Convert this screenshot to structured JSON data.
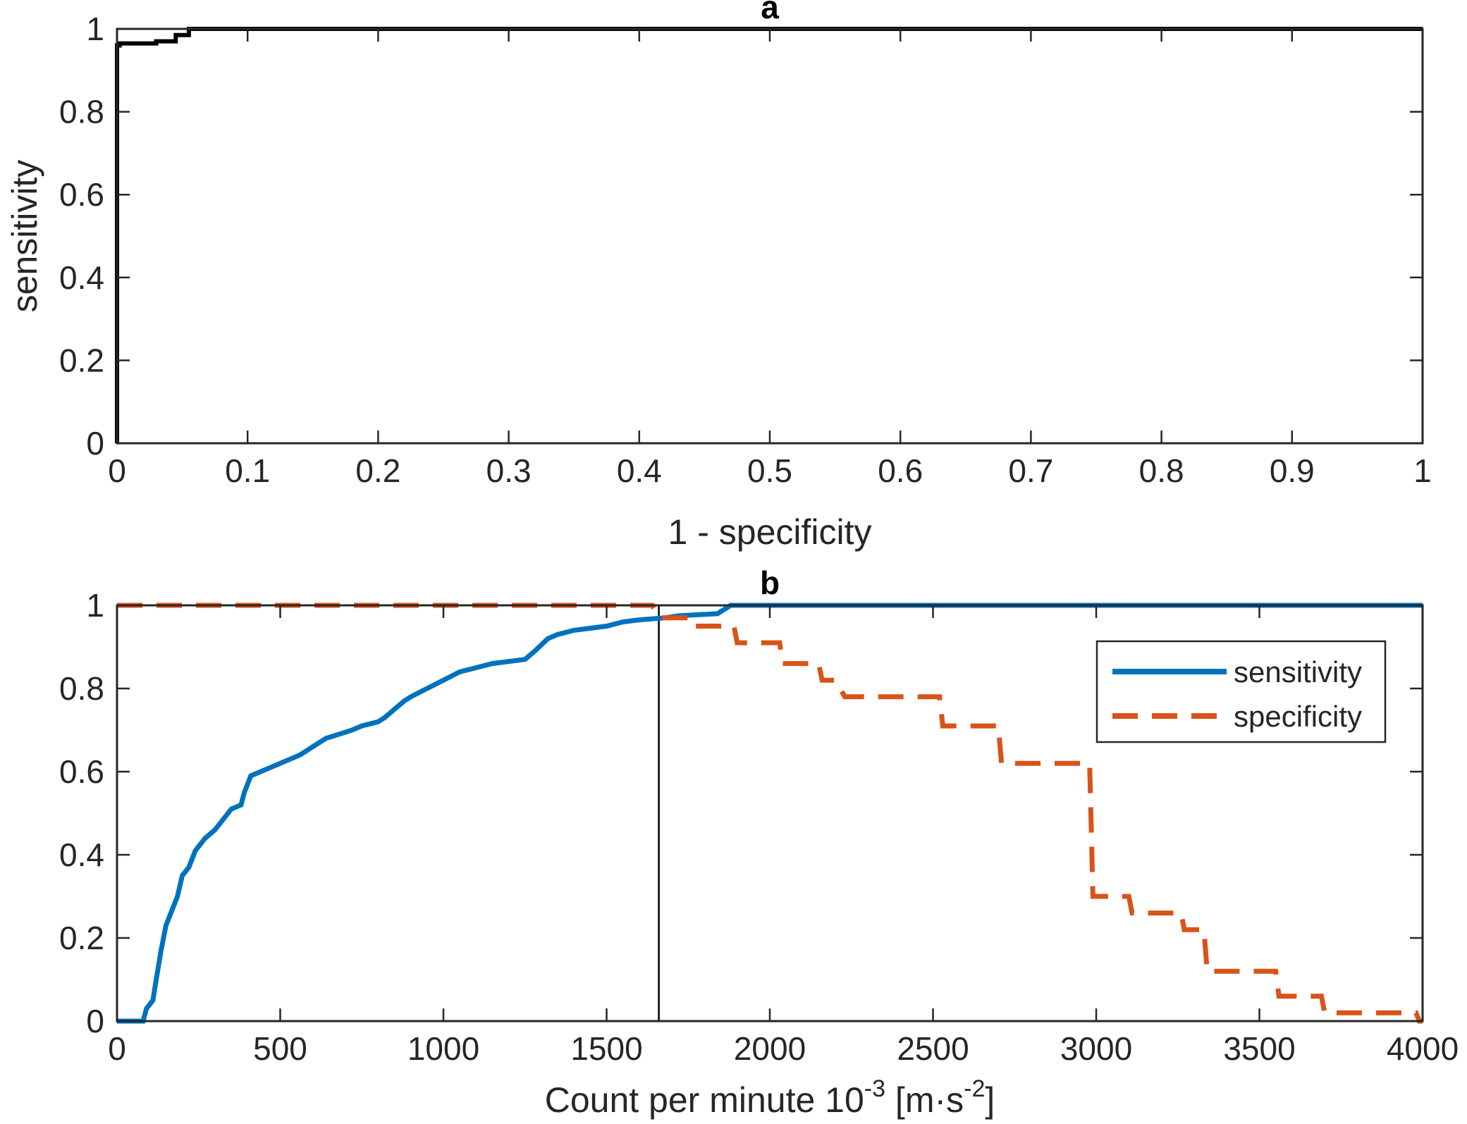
{
  "chart_data": [
    {
      "id": "a",
      "type": "line",
      "title": "a",
      "xlabel": "1 - specificity",
      "ylabel": "sensitivity",
      "xlim": [
        0,
        1
      ],
      "ylim": [
        0,
        1
      ],
      "xticks": [
        "0",
        "0.1",
        "0.2",
        "0.3",
        "0.4",
        "0.5",
        "0.6",
        "0.7",
        "0.8",
        "0.9",
        "1"
      ],
      "yticks": [
        "0",
        "0.2",
        "0.4",
        "0.6",
        "0.8",
        "1"
      ],
      "grid": false,
      "series": [
        {
          "color": "#000000",
          "style": "solid",
          "x": [
            0,
            0,
            0.002,
            0.002,
            0.03,
            0.03,
            0.045,
            0.045,
            0.055,
            0.055,
            1
          ],
          "y": [
            0,
            0.96,
            0.96,
            0.965,
            0.965,
            0.97,
            0.97,
            0.985,
            0.985,
            1,
            1
          ]
        }
      ]
    },
    {
      "id": "b",
      "type": "line",
      "title": "b",
      "xlabel": "Count per minute 10",
      "xlabel_exponent": "-3",
      "xlabel_units_open": " [m·s",
      "xlabel_units_exponent": "-2",
      "xlabel_units_close": "]",
      "xlim": [
        0,
        4000
      ],
      "ylim": [
        0,
        1
      ],
      "xticks": [
        "0",
        "500",
        "1000",
        "1500",
        "2000",
        "2500",
        "3000",
        "3500",
        "4000"
      ],
      "yticks": [
        "0",
        "0.2",
        "0.4",
        "0.6",
        "0.8",
        "1"
      ],
      "grid": false,
      "legend_position": "top-right",
      "threshold_x": 1660,
      "series": [
        {
          "name": "sensitivity",
          "color": "#0072BD",
          "style": "solid",
          "x": [
            0,
            80,
            90,
            110,
            120,
            135,
            150,
            170,
            185,
            200,
            220,
            240,
            270,
            300,
            330,
            350,
            380,
            390,
            410,
            440,
            470,
            500,
            530,
            560,
            600,
            640,
            680,
            720,
            750,
            800,
            820,
            850,
            880,
            900,
            950,
            1000,
            1050,
            1100,
            1150,
            1250,
            1280,
            1320,
            1350,
            1400,
            1500,
            1550,
            1600,
            1680,
            1720,
            1840,
            1880,
            4000
          ],
          "y": [
            0,
            0,
            0.03,
            0.05,
            0.1,
            0.17,
            0.23,
            0.27,
            0.3,
            0.35,
            0.37,
            0.41,
            0.44,
            0.46,
            0.49,
            0.51,
            0.52,
            0.55,
            0.59,
            0.6,
            0.61,
            0.62,
            0.63,
            0.64,
            0.66,
            0.68,
            0.69,
            0.7,
            0.71,
            0.72,
            0.73,
            0.75,
            0.77,
            0.78,
            0.8,
            0.82,
            0.84,
            0.85,
            0.86,
            0.87,
            0.89,
            0.92,
            0.93,
            0.94,
            0.95,
            0.96,
            0.965,
            0.97,
            0.975,
            0.98,
            1,
            1
          ]
        },
        {
          "name": "specificity",
          "color": "#D95319",
          "style": "dashed",
          "x": [
            0,
            1640,
            1660,
            1760,
            1770,
            1890,
            1900,
            2030,
            2040,
            2150,
            2160,
            2200,
            2230,
            2520,
            2530,
            2700,
            2710,
            2980,
            2990,
            3100,
            3110,
            3260,
            3270,
            3330,
            3340,
            3550,
            3560,
            3690,
            3700,
            3980,
            3990,
            4000
          ],
          "y": [
            1,
            1,
            0.97,
            0.97,
            0.95,
            0.95,
            0.91,
            0.91,
            0.86,
            0.86,
            0.82,
            0.82,
            0.78,
            0.78,
            0.71,
            0.71,
            0.62,
            0.62,
            0.3,
            0.3,
            0.26,
            0.26,
            0.22,
            0.22,
            0.12,
            0.12,
            0.06,
            0.06,
            0.02,
            0.02,
            0,
            0
          ]
        }
      ]
    }
  ]
}
